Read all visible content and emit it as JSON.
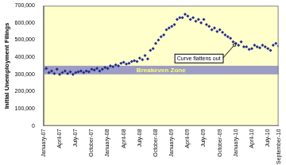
{
  "chart_data": {
    "type": "scatter",
    "y_label": "Initial Unemployment Filings",
    "categories": [
      "January-07",
      null,
      null,
      null,
      null,
      null,
      "April-07",
      null,
      null,
      null,
      null,
      null,
      "July-07",
      null,
      null,
      null,
      null,
      null,
      "October-07",
      null,
      null,
      null,
      null,
      null,
      "January-08",
      null,
      null,
      null,
      null,
      null,
      "April-08",
      null,
      null,
      null,
      null,
      null,
      "July-08",
      null,
      null,
      null,
      null,
      null,
      "October-08",
      null,
      null,
      null,
      null,
      null,
      "January-09",
      null,
      null,
      null,
      null,
      null,
      "April-09",
      null,
      null,
      null,
      null,
      null,
      "July-09",
      null,
      null,
      null,
      null,
      null,
      "October-09",
      null,
      null,
      null,
      null,
      null,
      "January-10",
      null,
      null,
      null,
      null,
      null,
      "April-10",
      null,
      null,
      null,
      null,
      null,
      "July-10",
      null,
      null,
      null,
      "September-10"
    ],
    "values": [
      325000,
      335000,
      310000,
      320000,
      305000,
      330000,
      300000,
      310000,
      320000,
      305000,
      315000,
      300000,
      310000,
      315000,
      320000,
      310000,
      320000,
      315000,
      330000,
      325000,
      335000,
      320000,
      330000,
      340000,
      335000,
      350000,
      345000,
      355000,
      350000,
      365000,
      370000,
      360000,
      365000,
      375000,
      380000,
      375000,
      395000,
      385000,
      410000,
      390000,
      440000,
      450000,
      480000,
      500000,
      520000,
      530000,
      560000,
      570000,
      580000,
      590000,
      620000,
      630000,
      630000,
      650000,
      640000,
      620000,
      630000,
      610000,
      620000,
      600000,
      620000,
      590000,
      580000,
      560000,
      570000,
      550000,
      560000,
      545000,
      530000,
      520000,
      510000,
      490000,
      480000,
      470000,
      490000,
      460000,
      460000,
      445000,
      450000,
      470000,
      460000,
      455000,
      470000,
      460000,
      450000,
      440000,
      470000,
      480000,
      465000
    ],
    "color": "#1f2a8a",
    "marker": "diamond",
    "ylim": [
      0,
      700000
    ],
    "yticks": [
      {
        "value": 0,
        "label": "0"
      },
      {
        "value": 100000,
        "label": "100,000"
      },
      {
        "value": 200000,
        "label": "200,000"
      },
      {
        "value": 300000,
        "label": "300,000"
      },
      {
        "value": 400000,
        "label": "400,000"
      },
      {
        "value": 500000,
        "label": "500,000"
      },
      {
        "value": 600000,
        "label": "600,000"
      },
      {
        "value": 700000,
        "label": "700,000"
      }
    ],
    "grid": false,
    "annotations": [
      {
        "text": "Breakeven Zone",
        "y_range": [
          300000,
          350000
        ]
      },
      {
        "text": "Curve flattens out"
      }
    ]
  }
}
